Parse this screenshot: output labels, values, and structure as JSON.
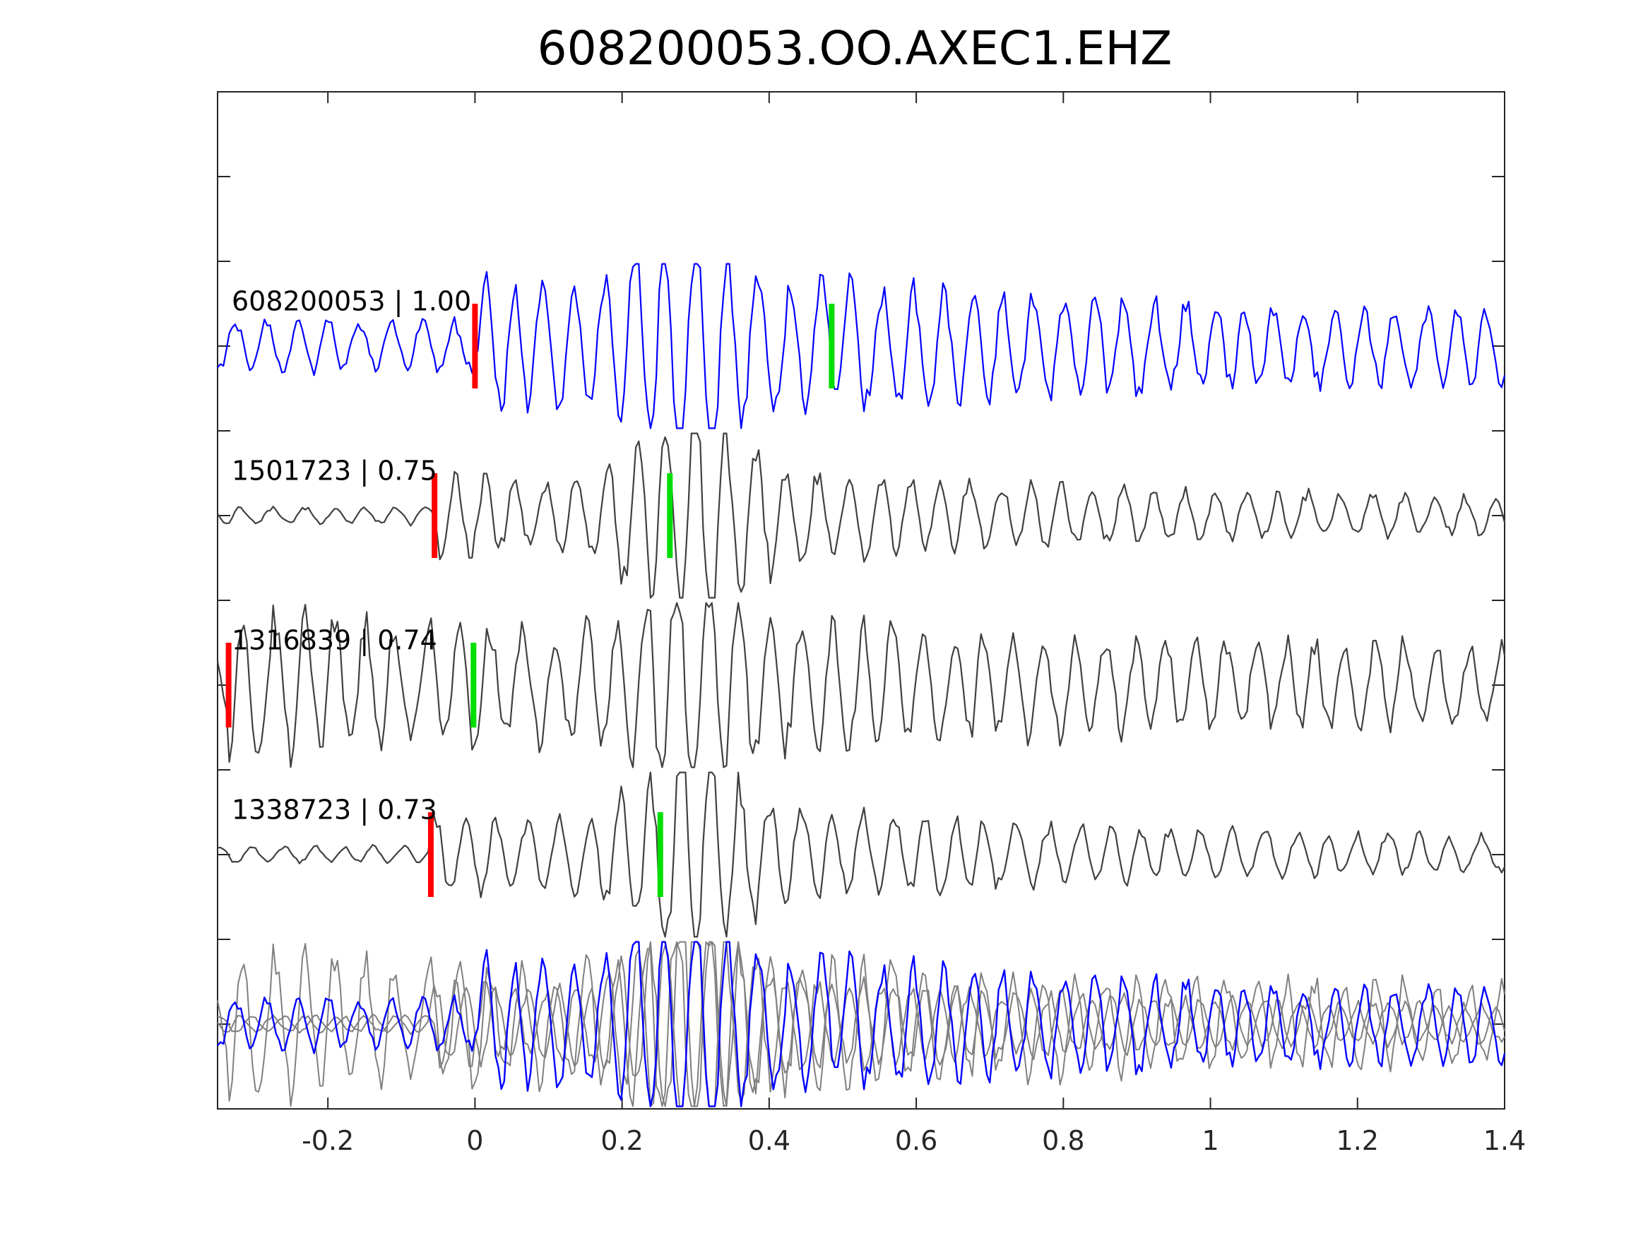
{
  "chart_data": {
    "type": "line",
    "title": "608200053.OO.AXEC1.EHZ",
    "xlabel": "",
    "ylabel": "",
    "xlim": [
      -0.35,
      1.4
    ],
    "ylim": [
      -1,
      11
    ],
    "grid": false,
    "x_ticks": [
      "-0.2",
      "0",
      "0.2",
      "0.4",
      "0.6",
      "0.8",
      "1",
      "1.2",
      "1.4"
    ],
    "x_tick_values": [
      -0.2,
      0,
      0.2,
      0.4,
      0.6,
      0.8,
      1,
      1.2,
      1.4
    ],
    "y_tick_values": [
      0,
      1,
      2,
      3,
      4,
      5,
      6,
      7,
      8,
      9,
      10
    ],
    "colors": {
      "template": "#0000ff",
      "match": "#404040",
      "overlay_match": "#808080",
      "p_pick": "#ff0000",
      "s_pick": "#00dd00",
      "axis": "#262626"
    },
    "traces": [
      {
        "label": "608200053 | 1.00",
        "color": "#0000ff",
        "baseline": 8,
        "p_pick": 0.0,
        "s_pick": 0.485,
        "wave": {
          "noise": 0.35,
          "p_amp": 0.6,
          "s_amp": 0.85,
          "s_time": 0.27,
          "freq": 24,
          "seed": 1
        }
      },
      {
        "label": "1501723 | 0.75",
        "color": "#404040",
        "baseline": 6,
        "p_pick": -0.055,
        "s_pick": 0.265,
        "wave": {
          "noise": 0.12,
          "p_amp": 0.45,
          "s_amp": 1.0,
          "s_time": 0.28,
          "freq": 24,
          "seed": 2
        }
      },
      {
        "label": "1316839 | 0.74",
        "color": "#404040",
        "baseline": 4,
        "p_pick": -0.335,
        "s_pick": -0.002,
        "wave": {
          "noise": 0.45,
          "p_amp": 0.6,
          "s_amp": 0.7,
          "s_time": 0.28,
          "freq": 24,
          "seed": 3
        }
      },
      {
        "label": "1338723 | 0.73",
        "color": "#404040",
        "baseline": 2,
        "p_pick": -0.06,
        "s_pick": 0.252,
        "wave": {
          "noise": 0.12,
          "p_amp": 0.45,
          "s_amp": 0.95,
          "s_time": 0.28,
          "freq": 24,
          "seed": 4
        }
      }
    ],
    "overlay": {
      "baseline": 0,
      "series_seeds": [
        2,
        3,
        4,
        1
      ]
    }
  }
}
